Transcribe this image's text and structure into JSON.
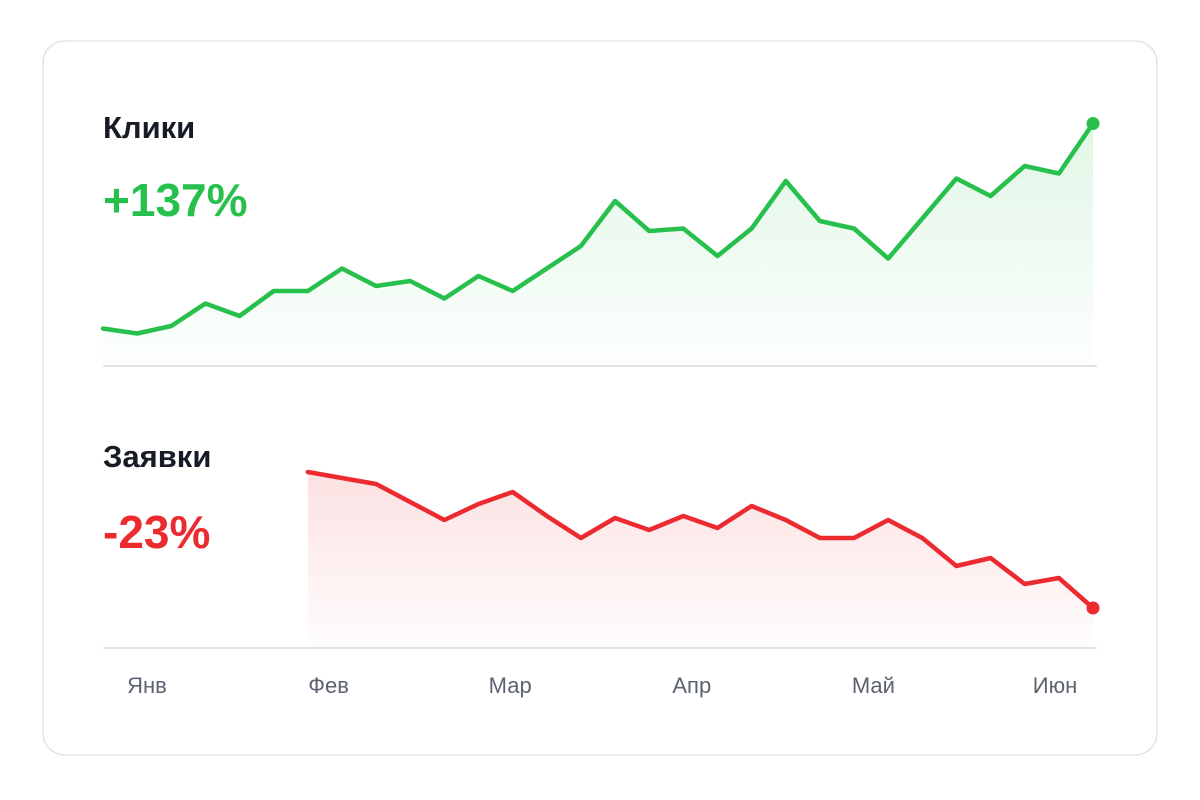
{
  "chart_data": [
    {
      "type": "line",
      "title": "Клики",
      "change": "+137%",
      "color": "#27c04c",
      "values": [
        15,
        13,
        16,
        25,
        20,
        30,
        30,
        39,
        32,
        34,
        27,
        36,
        30,
        39,
        48,
        66,
        54,
        55,
        44,
        55,
        74,
        58,
        55,
        43,
        59,
        75,
        68,
        80,
        77,
        97
      ],
      "ylim": [
        0,
        100
      ]
    },
    {
      "type": "line",
      "title": "Заявки",
      "change": "-23%",
      "color": "#ec2b30",
      "values": [
        null,
        null,
        null,
        null,
        null,
        null,
        88,
        85,
        82,
        73,
        64,
        72,
        78,
        66,
        55,
        65,
        59,
        66,
        60,
        71,
        64,
        55,
        55,
        64,
        55,
        41,
        45,
        32,
        35,
        20
      ],
      "ylim": [
        0,
        100
      ]
    }
  ],
  "months": [
    "Янв",
    "Фев",
    "Мар",
    "Апр",
    "Май",
    "Июн"
  ]
}
